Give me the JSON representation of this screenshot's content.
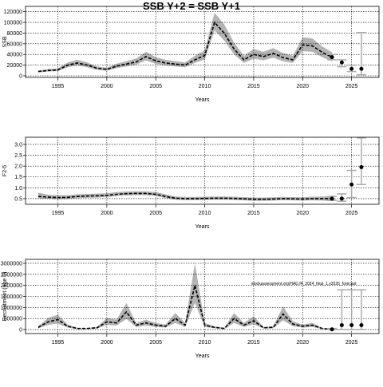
{
  "chart_data": [
    {
      "type": "line",
      "title": "SSB Y+2 = SSB Y+1",
      "xlabel": "Years",
      "ylabel": "SSB",
      "xlim": [
        1991.7,
        2027.8
      ],
      "xticks": [
        1995,
        2000,
        2005,
        2010,
        2015,
        2020,
        2025
      ],
      "ylim": [
        -3000,
        130000
      ],
      "yticks": [
        0,
        20000,
        40000,
        60000,
        80000,
        100000,
        120000
      ],
      "grid": true,
      "x": [
        1993,
        1994,
        1995,
        1996,
        1997,
        1998,
        1999,
        2000,
        2001,
        2002,
        2003,
        2004,
        2005,
        2006,
        2007,
        2008,
        2009,
        2010,
        2011,
        2012,
        2013,
        2014,
        2015,
        2016,
        2017,
        2018,
        2019,
        2020,
        2021,
        2022,
        2023
      ],
      "median": [
        8000,
        10000,
        11000,
        20000,
        24000,
        20000,
        14000,
        12000,
        18000,
        22000,
        26000,
        36000,
        28000,
        24000,
        22000,
        20000,
        30000,
        38000,
        100000,
        80000,
        50000,
        30000,
        40000,
        36000,
        42000,
        34000,
        30000,
        58000,
        56000,
        44000,
        35000
      ],
      "lower": [
        6400,
        8000,
        8800,
        16000,
        19200,
        16000,
        11200,
        9600,
        14400,
        17600,
        20800,
        28800,
        22400,
        19200,
        17600,
        16000,
        24000,
        30400,
        85000,
        66000,
        40000,
        24000,
        32000,
        29000,
        34000,
        27000,
        24000,
        46000,
        45000,
        35000,
        27000
      ],
      "upper": [
        10000,
        12500,
        13800,
        25000,
        30000,
        25000,
        17500,
        15000,
        22500,
        27500,
        32500,
        45000,
        35000,
        30000,
        27500,
        25000,
        37500,
        47500,
        118000,
        96000,
        62000,
        37500,
        50000,
        45000,
        52000,
        42500,
        37500,
        72000,
        70000,
        55000,
        44000
      ],
      "forecast": {
        "x": [
          2023,
          2024,
          2025,
          2026
        ],
        "values": [
          35000,
          25000,
          13000,
          13000
        ],
        "lower": [
          30000,
          17000,
          8000,
          2000
        ],
        "upper": [
          40000,
          30000,
          20000,
          81000
        ]
      }
    },
    {
      "type": "line",
      "xlabel": "Years",
      "ylabel": "F2-5",
      "xlim": [
        1991.7,
        2027.8
      ],
      "xticks": [
        1995,
        2000,
        2005,
        2010,
        2015,
        2020,
        2025
      ],
      "ylim": [
        0.24,
        3.33
      ],
      "yticks": [
        0.5,
        {
          "value": 1,
          "label": "1.0"
        },
        1.5,
        {
          "value": 2,
          "label": "2.0"
        },
        2.5,
        {
          "value": 3,
          "label": "3.0"
        }
      ],
      "grid": true,
      "x": [
        1993,
        1994,
        1995,
        1996,
        1997,
        1998,
        1999,
        2000,
        2001,
        2002,
        2003,
        2004,
        2005,
        2006,
        2007,
        2008,
        2009,
        2010,
        2011,
        2012,
        2013,
        2014,
        2015,
        2016,
        2017,
        2018,
        2019,
        2020,
        2021,
        2022,
        2023
      ],
      "median": [
        0.6,
        0.57,
        0.55,
        0.56,
        0.6,
        0.62,
        0.63,
        0.65,
        0.7,
        0.73,
        0.74,
        0.74,
        0.7,
        0.6,
        0.52,
        0.5,
        0.5,
        0.51,
        0.52,
        0.52,
        0.51,
        0.49,
        0.47,
        0.47,
        0.48,
        0.5,
        0.49,
        0.48,
        0.5,
        0.5,
        0.5
      ],
      "lower": [
        0.5,
        0.49,
        0.47,
        0.48,
        0.52,
        0.54,
        0.55,
        0.57,
        0.62,
        0.65,
        0.66,
        0.66,
        0.62,
        0.52,
        0.45,
        0.43,
        0.43,
        0.44,
        0.45,
        0.45,
        0.44,
        0.42,
        0.4,
        0.4,
        0.41,
        0.43,
        0.42,
        0.41,
        0.42,
        0.41,
        0.39
      ],
      "upper": [
        0.78,
        0.68,
        0.66,
        0.66,
        0.7,
        0.72,
        0.73,
        0.75,
        0.8,
        0.83,
        0.84,
        0.84,
        0.8,
        0.7,
        0.6,
        0.58,
        0.58,
        0.59,
        0.6,
        0.6,
        0.59,
        0.57,
        0.55,
        0.55,
        0.56,
        0.58,
        0.57,
        0.56,
        0.59,
        0.6,
        0.62
      ],
      "forecast": {
        "x": [
          2023,
          2024,
          2025,
          2026
        ],
        "values": [
          0.5,
          0.5,
          1.15,
          1.95
        ],
        "lower": [
          0.42,
          0.38,
          0.55,
          1.15
        ],
        "upper": [
          0.6,
          0.72,
          1.8,
          3.3
        ]
      }
    },
    {
      "type": "line",
      "xlabel": "Years",
      "ylabel": "Recruitment (age 0)",
      "xlim": [
        1991.7,
        2027.8
      ],
      "xticks": [
        1995,
        2000,
        2005,
        2010,
        2015,
        2020,
        2025
      ],
      "ylim": [
        -180000,
        3180000
      ],
      "yticks": [
        0,
        500000,
        1000000,
        1500000,
        2000000,
        2500000,
        3000000
      ],
      "grid": true,
      "annotation": "stockassessment.org/HAD.f4_2024_final_1.y2026_forecast",
      "x": [
        1993,
        1994,
        1995,
        1996,
        1997,
        1998,
        1999,
        2000,
        2001,
        2002,
        2003,
        2004,
        2005,
        2006,
        2007,
        2008,
        2009,
        2010,
        2011,
        2012,
        2013,
        2014,
        2015,
        2016,
        2017,
        2018,
        2019,
        2020,
        2021,
        2022,
        2023
      ],
      "median": [
        100000,
        350000,
        450000,
        150000,
        50000,
        50000,
        80000,
        350000,
        300000,
        800000,
        200000,
        300000,
        200000,
        150000,
        500000,
        200000,
        2000000,
        200000,
        100000,
        50000,
        500000,
        200000,
        400000,
        80000,
        100000,
        700000,
        250000,
        150000,
        200000,
        50000,
        10000
      ],
      "lower": [
        60000,
        210000,
        270000,
        90000,
        30000,
        30000,
        48000,
        210000,
        180000,
        480000,
        120000,
        180000,
        120000,
        90000,
        300000,
        120000,
        1200000,
        120000,
        60000,
        30000,
        300000,
        120000,
        240000,
        48000,
        60000,
        420000,
        150000,
        90000,
        120000,
        30000,
        6000
      ],
      "upper": [
        150000,
        525000,
        675000,
        225000,
        75000,
        75000,
        120000,
        525000,
        450000,
        1200000,
        300000,
        450000,
        300000,
        225000,
        750000,
        300000,
        3000000,
        300000,
        150000,
        75000,
        750000,
        300000,
        600000,
        120000,
        150000,
        1050000,
        375000,
        225000,
        300000,
        75000,
        15000
      ],
      "forecast": {
        "x": [
          2023,
          2024,
          2025,
          2026
        ],
        "values": [
          10000,
          200000,
          200000,
          200000
        ],
        "lower": [
          0,
          0,
          0,
          0
        ],
        "upper": [
          50000,
          1800000,
          1800000,
          1800000
        ]
      }
    }
  ]
}
